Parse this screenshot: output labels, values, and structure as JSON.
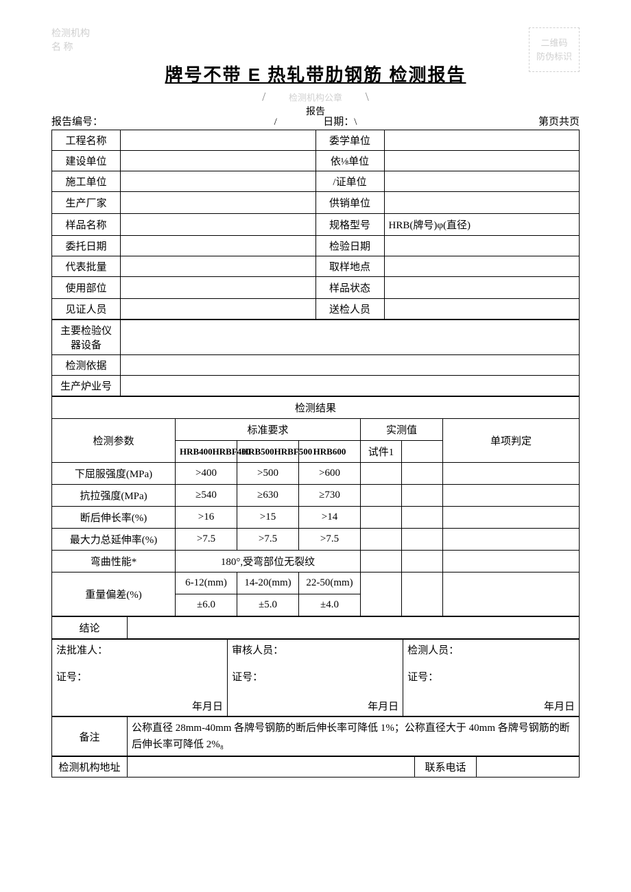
{
  "header": {
    "org_label_l1": "检测机构",
    "org_label_l2": "名   称",
    "qr_l1": "二维码",
    "qr_l2": "防伪标识"
  },
  "title": "牌号不带 E 热轧带肋钢筋  检测报告",
  "seal": {
    "seal_text": "检测机构公章",
    "report_word": "报告"
  },
  "meta": {
    "report_no_label": "报告编号：",
    "date_label": "日期：\\",
    "middle_slash": "/",
    "page_label": "第页共页"
  },
  "info_rows": [
    {
      "l": "工程名称",
      "r": "委学单位"
    },
    {
      "l": "建设单位",
      "r": "依⅛单位"
    },
    {
      "l": "施工单位",
      "r": "/证单位"
    },
    {
      "l": "生产厂家",
      "r": "供销单位"
    },
    {
      "l": "样品名称",
      "r": "规格型号",
      "rv": "HRB(牌号)φ(直径)"
    },
    {
      "l": "委托日期",
      "r": "检验日期"
    },
    {
      "l": "代表批量",
      "r": "取样地点"
    },
    {
      "l": "使用部位",
      "r": "样品状态"
    },
    {
      "l": "见证人员",
      "r": "送检人员"
    }
  ],
  "info_single": [
    "主要检验仪器设备",
    "检测依据",
    "生产炉业号"
  ],
  "results_header": "检测结果",
  "param_headers": {
    "param": "检测参数",
    "std": "标准要求",
    "measured": "实测值",
    "judge": "单项判定",
    "c1": "HRB400HRBF400",
    "c2": "HRB500HRBF500",
    "c3": "HRB600",
    "m1": "试件1",
    "m2": ""
  },
  "param_rows": [
    {
      "name": "下屈服强度(MPa)",
      "v1": ">400",
      "v2": ">500",
      "v3": ">600"
    },
    {
      "name": "抗拉强度(MPa)",
      "v1": "≥540",
      "v2": "≥630",
      "v3": "≥730"
    },
    {
      "name": "断后伸长率(%)",
      "v1": ">16",
      "v2": ">15",
      "v3": ">14"
    },
    {
      "name": "最大力总延伸率(%)",
      "v1": ">7.5",
      "v2": ">7.5",
      "v3": ">7.5"
    }
  ],
  "bend_row": {
    "name": "弯曲性能*",
    "val": "180°,受弯部位无裂纹"
  },
  "weight_row": {
    "name": "重量偏差(%)",
    "r1v1": "6-12(mm)",
    "r1v2": "14-20(mm)",
    "r1v3": "22-50(mm)",
    "r2v1": "±6.0",
    "r2v2": "±5.0",
    "r2v3": "±4.0"
  },
  "conclusion_label": "结论",
  "sign": {
    "c1l1": "法批准人：",
    "c2l1": "审核人员：",
    "c3l1": "检测人员：",
    "c1l2": "证号：",
    "c2l2": "证号：",
    "c3l2": "证号：",
    "date": "年月日"
  },
  "remark": {
    "label": "备注",
    "text": "公称直径 28mm-40mm 各牌号钢筋的断后伸长率可降低 1%；公称直径大于 40mm 各牌号钢筋的断后伸长率可降低 2%₈"
  },
  "footer": {
    "addr_label": "检测机构地址",
    "tel_label": "联系电话"
  }
}
